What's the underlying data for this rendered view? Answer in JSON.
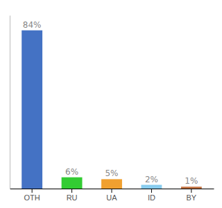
{
  "chart_data": {
    "type": "bar",
    "categories": [
      "OTH",
      "RU",
      "UA",
      "ID",
      "BY"
    ],
    "values": [
      84,
      6,
      5,
      2,
      1
    ],
    "value_labels": [
      "84%",
      "6%",
      "5%",
      "2%",
      "1%"
    ],
    "colors": [
      "#4472c4",
      "#33cc33",
      "#f0a030",
      "#88ccee",
      "#c07040"
    ],
    "ylim": [
      0,
      92
    ],
    "data_labels": true,
    "tick_labels": "x",
    "grid": false
  }
}
